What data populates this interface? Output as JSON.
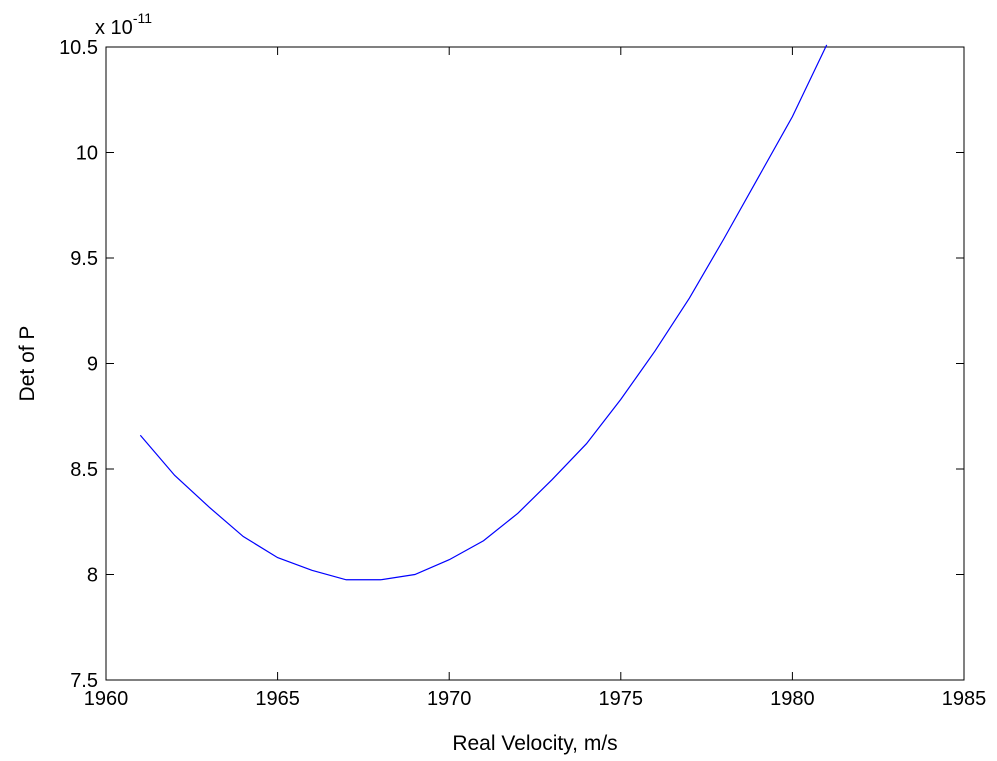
{
  "chart_data": {
    "type": "line",
    "title": "",
    "xlabel": "Real Velocity, m/s",
    "ylabel": "Det of P",
    "y_multiplier_base": "x 10",
    "y_multiplier_exponent": "-11",
    "xlim": [
      1960,
      1985
    ],
    "ylim": [
      7.5,
      10.5
    ],
    "x_ticks": [
      1960,
      1965,
      1970,
      1975,
      1980,
      1985
    ],
    "x_tick_labels": [
      "1960",
      "1965",
      "1970",
      "1975",
      "1980",
      "1985"
    ],
    "y_ticks": [
      7.5,
      8,
      8.5,
      9,
      9.5,
      10,
      10.5
    ],
    "y_tick_labels": [
      "7.5",
      "8",
      "8.5",
      "9",
      "9.5",
      "10",
      "10.5"
    ],
    "grid": false,
    "legend": "none",
    "series": [
      {
        "color": "#0000ff",
        "x": [
          1961,
          1962,
          1963,
          1964,
          1965,
          1966,
          1967,
          1968,
          1969,
          1970,
          1971,
          1972,
          1973,
          1974,
          1975,
          1976,
          1977,
          1978,
          1979,
          1980,
          1981
        ],
        "y": [
          8.66,
          8.47,
          8.32,
          8.18,
          8.08,
          8.02,
          7.975,
          7.975,
          8.0,
          8.07,
          8.16,
          8.29,
          8.45,
          8.62,
          8.83,
          9.06,
          9.31,
          9.59,
          9.88,
          10.17,
          10.51
        ]
      }
    ]
  }
}
